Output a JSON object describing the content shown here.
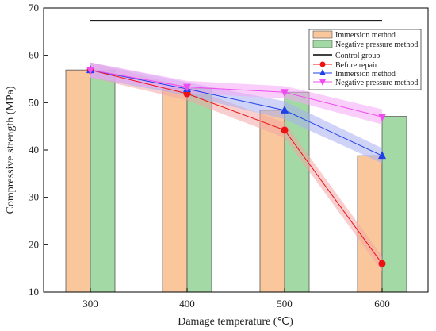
{
  "chart_data": {
    "type": "bar",
    "xlabel": "Damage temperature (℃)",
    "ylabel": "Compressive strength (MPa)",
    "ylim": [
      10,
      70
    ],
    "yticks": [
      10,
      20,
      30,
      40,
      50,
      60,
      70
    ],
    "categories": [
      "300",
      "400",
      "500",
      "600"
    ],
    "bar_series": [
      {
        "name": "Immersion method",
        "color": "#f9c79b",
        "values": [
          56.9,
          53.0,
          48.4,
          38.8
        ]
      },
      {
        "name": "Negative pressure method",
        "color": "#a3d9a5",
        "values": [
          56.8,
          53.0,
          52.2,
          47.1
        ]
      }
    ],
    "reference_line": {
      "name": "Control group",
      "value": 67.3,
      "color": "#000000"
    },
    "line_series": [
      {
        "name": "Before repair",
        "color": "#ee1111",
        "band_color": "#f3a5a5",
        "marker": "circle",
        "values": [
          56.9,
          51.9,
          44.2,
          16.0
        ],
        "band": [
          1.6,
          1.4,
          1.6,
          1.6
        ]
      },
      {
        "name": "Immersion method",
        "color": "#1f3fe8",
        "band_color": "#a8aef0",
        "marker": "triangle-up",
        "values": [
          56.9,
          52.9,
          48.4,
          38.8
        ],
        "band": [
          1.6,
          1.4,
          1.9,
          1.6
        ]
      },
      {
        "name": "Negative pressure method",
        "color": "#f04cf0",
        "band_color": "#f5a6f5",
        "marker": "triangle-down",
        "values": [
          56.9,
          53.3,
          52.2,
          47.0
        ],
        "band": [
          1.6,
          1.3,
          1.3,
          1.6
        ]
      }
    ],
    "legend_position": "top-right",
    "grid": false
  }
}
